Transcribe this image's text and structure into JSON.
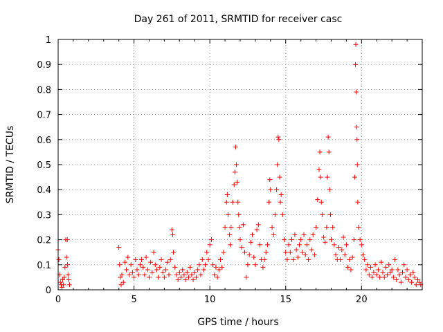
{
  "chart_data": {
    "type": "scatter",
    "title": "Day 261 of 2011, SRMTID for receiver casc",
    "xlabel": "GPS time / hours",
    "ylabel": "SRMTID / TECUs",
    "xlim": [
      0,
      24
    ],
    "ylim": [
      0,
      1
    ],
    "xticks": [
      0,
      5,
      10,
      15,
      20
    ],
    "yticks": [
      0,
      0.1,
      0.2,
      0.3,
      0.4,
      0.5,
      0.6,
      0.7,
      0.8,
      0.9,
      1
    ],
    "xtick_labels": [
      "0",
      "5",
      "10",
      "15",
      "20"
    ],
    "ytick_labels": [
      "0",
      "0.1",
      "0.2",
      "0.3",
      "0.4",
      "0.5",
      "0.6",
      "0.7",
      "0.8",
      "0.9",
      "1"
    ],
    "grid": true,
    "marker": "+",
    "marker_color": "#ff0000",
    "series": [
      {
        "name": "SRMTID",
        "points": [
          [
            0.0,
            0.16
          ],
          [
            0.05,
            0.12
          ],
          [
            0.1,
            0.06
          ],
          [
            0.15,
            0.03
          ],
          [
            0.2,
            0.02
          ],
          [
            0.25,
            0.01
          ],
          [
            0.3,
            0.04
          ],
          [
            0.35,
            0.02
          ],
          [
            0.4,
            0.05
          ],
          [
            0.45,
            0.09
          ],
          [
            0.5,
            0.2
          ],
          [
            0.55,
            0.13
          ],
          [
            0.6,
            0.2
          ],
          [
            0.62,
            0.1
          ],
          [
            0.65,
            0.06
          ],
          [
            0.7,
            0.04
          ],
          [
            0.75,
            0.02
          ],
          [
            4.0,
            0.17
          ],
          [
            4.05,
            0.1
          ],
          [
            4.1,
            0.05
          ],
          [
            4.15,
            0.02
          ],
          [
            4.2,
            0.06
          ],
          [
            4.3,
            0.03
          ],
          [
            4.4,
            0.11
          ],
          [
            4.5,
            0.08
          ],
          [
            4.6,
            0.13
          ],
          [
            4.7,
            0.06
          ],
          [
            4.8,
            0.1
          ],
          [
            4.9,
            0.07
          ],
          [
            5.0,
            0.05
          ],
          [
            5.1,
            0.12
          ],
          [
            5.2,
            0.08
          ],
          [
            5.3,
            0.06
          ],
          [
            5.4,
            0.1
          ],
          [
            5.5,
            0.12
          ],
          [
            5.6,
            0.09
          ],
          [
            5.7,
            0.06
          ],
          [
            5.8,
            0.13
          ],
          [
            5.9,
            0.08
          ],
          [
            6.0,
            0.05
          ],
          [
            6.1,
            0.11
          ],
          [
            6.2,
            0.07
          ],
          [
            6.3,
            0.15
          ],
          [
            6.4,
            0.1
          ],
          [
            6.5,
            0.08
          ],
          [
            6.6,
            0.05
          ],
          [
            6.7,
            0.09
          ],
          [
            6.8,
            0.12
          ],
          [
            6.9,
            0.07
          ],
          [
            7.0,
            0.05
          ],
          [
            7.1,
            0.08
          ],
          [
            7.2,
            0.11
          ],
          [
            7.3,
            0.06
          ],
          [
            7.4,
            0.12
          ],
          [
            7.5,
            0.24
          ],
          [
            7.55,
            0.22
          ],
          [
            7.6,
            0.15
          ],
          [
            7.7,
            0.09
          ],
          [
            7.8,
            0.06
          ],
          [
            7.9,
            0.04
          ],
          [
            8.0,
            0.07
          ],
          [
            8.1,
            0.05
          ],
          [
            8.2,
            0.08
          ],
          [
            8.3,
            0.06
          ],
          [
            8.4,
            0.04
          ],
          [
            8.5,
            0.07
          ],
          [
            8.6,
            0.05
          ],
          [
            8.7,
            0.09
          ],
          [
            8.8,
            0.06
          ],
          [
            8.9,
            0.04
          ],
          [
            9.0,
            0.07
          ],
          [
            9.1,
            0.05
          ],
          [
            9.2,
            0.08
          ],
          [
            9.3,
            0.1
          ],
          [
            9.4,
            0.06
          ],
          [
            9.5,
            0.12
          ],
          [
            9.6,
            0.08
          ],
          [
            9.7,
            0.1
          ],
          [
            9.8,
            0.15
          ],
          [
            9.9,
            0.12
          ],
          [
            10.0,
            0.18
          ],
          [
            10.1,
            0.2
          ],
          [
            10.2,
            0.1
          ],
          [
            10.3,
            0.06
          ],
          [
            10.4,
            0.09
          ],
          [
            10.5,
            0.05
          ],
          [
            10.6,
            0.08
          ],
          [
            10.7,
            0.12
          ],
          [
            10.8,
            0.09
          ],
          [
            10.9,
            0.15
          ],
          [
            11.0,
            0.25
          ],
          [
            11.1,
            0.35
          ],
          [
            11.15,
            0.38
          ],
          [
            11.2,
            0.3
          ],
          [
            11.3,
            0.22
          ],
          [
            11.35,
            0.18
          ],
          [
            11.4,
            0.25
          ],
          [
            11.5,
            0.35
          ],
          [
            11.6,
            0.42
          ],
          [
            11.65,
            0.47
          ],
          [
            11.7,
            0.57
          ],
          [
            11.75,
            0.5
          ],
          [
            11.8,
            0.43
          ],
          [
            11.85,
            0.35
          ],
          [
            11.9,
            0.3
          ],
          [
            11.95,
            0.25
          ],
          [
            12.0,
            0.2
          ],
          [
            12.1,
            0.17
          ],
          [
            12.2,
            0.26
          ],
          [
            12.3,
            0.15
          ],
          [
            12.4,
            0.05
          ],
          [
            12.5,
            0.1
          ],
          [
            12.6,
            0.14
          ],
          [
            12.7,
            0.19
          ],
          [
            12.8,
            0.22
          ],
          [
            12.9,
            0.13
          ],
          [
            13.0,
            0.1
          ],
          [
            13.1,
            0.24
          ],
          [
            13.2,
            0.26
          ],
          [
            13.3,
            0.18
          ],
          [
            13.4,
            0.12
          ],
          [
            13.5,
            0.09
          ],
          [
            13.6,
            0.12
          ],
          [
            13.7,
            0.15
          ],
          [
            13.8,
            0.18
          ],
          [
            13.9,
            0.35
          ],
          [
            13.95,
            0.44
          ],
          [
            14.0,
            0.4
          ],
          [
            14.1,
            0.25
          ],
          [
            14.2,
            0.22
          ],
          [
            14.3,
            0.3
          ],
          [
            14.4,
            0.4
          ],
          [
            14.45,
            0.5
          ],
          [
            14.5,
            0.61
          ],
          [
            14.55,
            0.6
          ],
          [
            14.6,
            0.45
          ],
          [
            14.65,
            0.35
          ],
          [
            14.7,
            0.38
          ],
          [
            14.8,
            0.3
          ],
          [
            14.9,
            0.2
          ],
          [
            15.0,
            0.15
          ],
          [
            15.1,
            0.12
          ],
          [
            15.2,
            0.18
          ],
          [
            15.3,
            0.15
          ],
          [
            15.4,
            0.2
          ],
          [
            15.5,
            0.12
          ],
          [
            15.6,
            0.22
          ],
          [
            15.7,
            0.16
          ],
          [
            15.8,
            0.13
          ],
          [
            15.9,
            0.18
          ],
          [
            16.0,
            0.2
          ],
          [
            16.1,
            0.15
          ],
          [
            16.2,
            0.22
          ],
          [
            16.3,
            0.14
          ],
          [
            16.4,
            0.18
          ],
          [
            16.5,
            0.12
          ],
          [
            16.6,
            0.2
          ],
          [
            16.7,
            0.16
          ],
          [
            16.8,
            0.22
          ],
          [
            16.9,
            0.14
          ],
          [
            17.0,
            0.25
          ],
          [
            17.1,
            0.36
          ],
          [
            17.2,
            0.48
          ],
          [
            17.25,
            0.55
          ],
          [
            17.3,
            0.45
          ],
          [
            17.35,
            0.35
          ],
          [
            17.4,
            0.3
          ],
          [
            17.5,
            0.21
          ],
          [
            17.6,
            0.19
          ],
          [
            17.7,
            0.25
          ],
          [
            17.75,
            0.45
          ],
          [
            17.8,
            0.61
          ],
          [
            17.85,
            0.55
          ],
          [
            17.9,
            0.4
          ],
          [
            17.95,
            0.3
          ],
          [
            18.0,
            0.2
          ],
          [
            18.1,
            0.25
          ],
          [
            18.2,
            0.18
          ],
          [
            18.3,
            0.14
          ],
          [
            18.4,
            0.12
          ],
          [
            18.5,
            0.17
          ],
          [
            18.6,
            0.12
          ],
          [
            18.7,
            0.16
          ],
          [
            18.8,
            0.21
          ],
          [
            18.9,
            0.14
          ],
          [
            19.0,
            0.18
          ],
          [
            19.1,
            0.09
          ],
          [
            19.2,
            0.12
          ],
          [
            19.3,
            0.08
          ],
          [
            19.4,
            0.13
          ],
          [
            19.5,
            0.2
          ],
          [
            19.55,
            0.45
          ],
          [
            19.6,
            0.9
          ],
          [
            19.62,
            0.98
          ],
          [
            19.65,
            0.79
          ],
          [
            19.68,
            0.65
          ],
          [
            19.7,
            0.6
          ],
          [
            19.72,
            0.5
          ],
          [
            19.75,
            0.35
          ],
          [
            19.8,
            0.25
          ],
          [
            19.9,
            0.2
          ],
          [
            20.0,
            0.18
          ],
          [
            20.1,
            0.14
          ],
          [
            20.2,
            0.12
          ],
          [
            20.3,
            0.08
          ],
          [
            20.4,
            0.1
          ],
          [
            20.5,
            0.06
          ],
          [
            20.6,
            0.09
          ],
          [
            20.7,
            0.05
          ],
          [
            20.8,
            0.07
          ],
          [
            20.9,
            0.1
          ],
          [
            21.0,
            0.06
          ],
          [
            21.1,
            0.08
          ],
          [
            21.2,
            0.05
          ],
          [
            21.3,
            0.11
          ],
          [
            21.4,
            0.07
          ],
          [
            21.5,
            0.05
          ],
          [
            21.6,
            0.09
          ],
          [
            21.7,
            0.06
          ],
          [
            21.8,
            0.1
          ],
          [
            21.9,
            0.07
          ],
          [
            22.0,
            0.08
          ],
          [
            22.1,
            0.05
          ],
          [
            22.2,
            0.12
          ],
          [
            22.3,
            0.04
          ],
          [
            22.4,
            0.08
          ],
          [
            22.5,
            0.06
          ],
          [
            22.6,
            0.03
          ],
          [
            22.7,
            0.07
          ],
          [
            22.8,
            0.1
          ],
          [
            22.9,
            0.05
          ],
          [
            23.0,
            0.08
          ],
          [
            23.1,
            0.04
          ],
          [
            23.2,
            0.06
          ],
          [
            23.3,
            0.03
          ],
          [
            23.4,
            0.07
          ],
          [
            23.5,
            0.05
          ],
          [
            23.6,
            0.02
          ],
          [
            23.7,
            0.04
          ],
          [
            23.8,
            0.03
          ],
          [
            23.9,
            0.02
          ]
        ]
      }
    ]
  }
}
